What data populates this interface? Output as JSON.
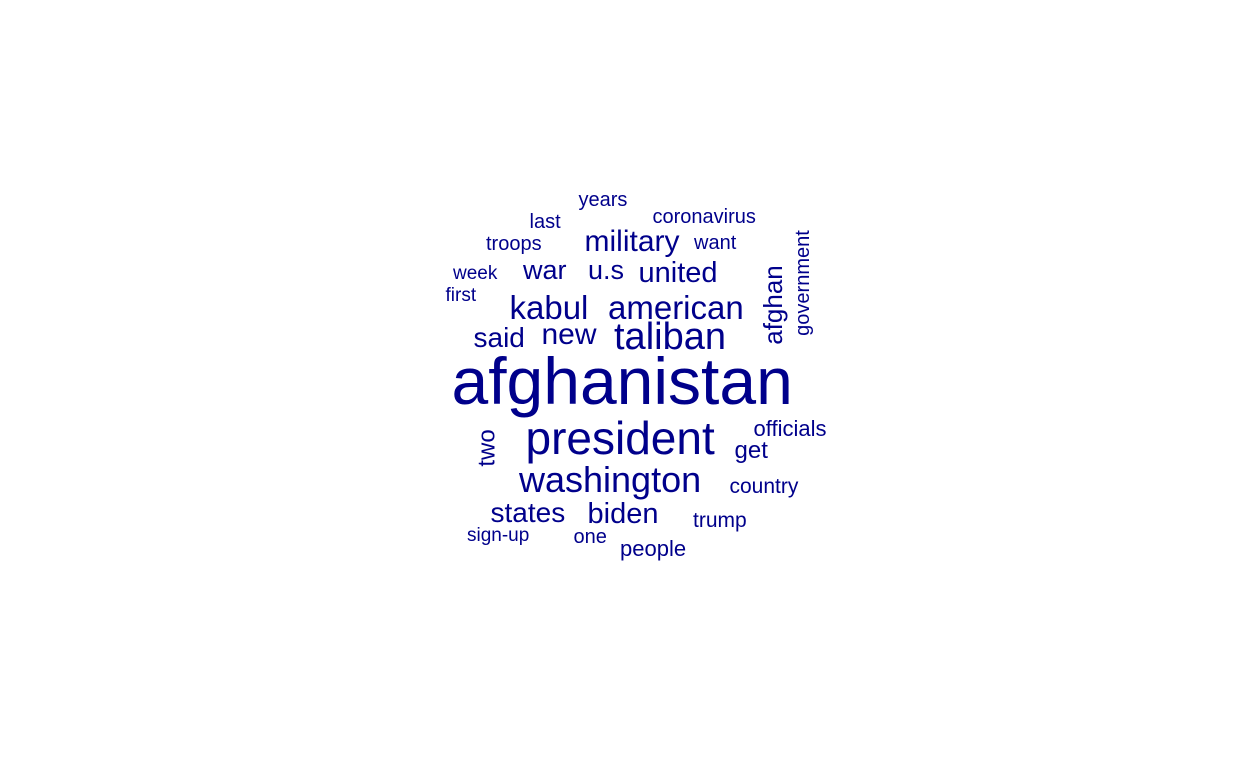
{
  "word_color": "#00008B",
  "background_color": "#FFFFFF",
  "words": [
    {
      "id": "afghanistan",
      "text": "afghanistan",
      "rotated": false
    },
    {
      "id": "president",
      "text": "president",
      "rotated": false
    },
    {
      "id": "taliban",
      "text": "taliban",
      "rotated": false
    },
    {
      "id": "washington",
      "text": "washington",
      "rotated": false
    },
    {
      "id": "american",
      "text": "american",
      "rotated": false
    },
    {
      "id": "kabul",
      "text": "kabul",
      "rotated": false
    },
    {
      "id": "military",
      "text": "military",
      "rotated": false
    },
    {
      "id": "new",
      "text": "new",
      "rotated": false
    },
    {
      "id": "said",
      "text": "said",
      "rotated": false
    },
    {
      "id": "united",
      "text": "united",
      "rotated": false
    },
    {
      "id": "us",
      "text": "u.s",
      "rotated": false
    },
    {
      "id": "war",
      "text": "war",
      "rotated": false
    },
    {
      "id": "states",
      "text": "states",
      "rotated": false
    },
    {
      "id": "biden",
      "text": "biden",
      "rotated": false
    },
    {
      "id": "afghan",
      "text": "afghan",
      "rotated": true
    },
    {
      "id": "two",
      "text": "two",
      "rotated": true
    },
    {
      "id": "get",
      "text": "get",
      "rotated": false
    },
    {
      "id": "officials",
      "text": "officials",
      "rotated": false
    },
    {
      "id": "country",
      "text": "country",
      "rotated": false
    },
    {
      "id": "trump",
      "text": "trump",
      "rotated": false
    },
    {
      "id": "people",
      "text": "people",
      "rotated": false
    },
    {
      "id": "one",
      "text": "one",
      "rotated": false
    },
    {
      "id": "sign-up",
      "text": "sign-up",
      "rotated": false
    },
    {
      "id": "government",
      "text": "government",
      "rotated": true
    },
    {
      "id": "coronavirus",
      "text": "coronavirus",
      "rotated": false
    },
    {
      "id": "want",
      "text": "want",
      "rotated": false
    },
    {
      "id": "troops",
      "text": "troops",
      "rotated": false
    },
    {
      "id": "last",
      "text": "last",
      "rotated": false
    },
    {
      "id": "years",
      "text": "years",
      "rotated": false
    },
    {
      "id": "week",
      "text": "week",
      "rotated": false
    },
    {
      "id": "first",
      "text": "first",
      "rotated": false
    }
  ]
}
